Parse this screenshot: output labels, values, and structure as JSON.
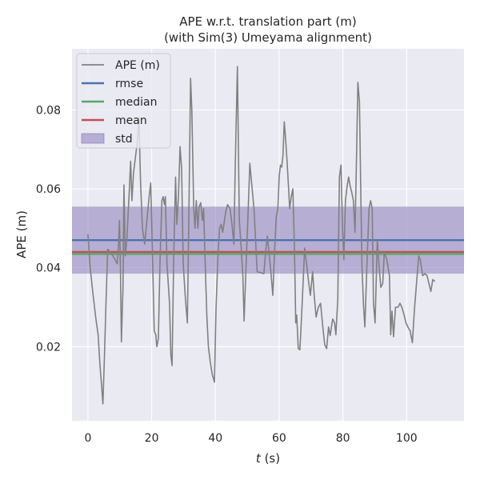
{
  "chart_data": {
    "type": "line",
    "title": "APE w.r.t. translation part (m)",
    "subtitle": "(with Sim(3) Umeyama alignment)",
    "xlabel_italic": "t",
    "xlabel_rest": " (s)",
    "ylabel": "APE (m)",
    "xlim": [
      -5,
      118
    ],
    "ylim": [
      0.0012,
      0.0955
    ],
    "xticks": [
      0,
      20,
      40,
      60,
      80,
      100
    ],
    "yticks": [
      0.02,
      0.04,
      0.06,
      0.08
    ],
    "ytick_labels": [
      "0.02",
      "0.04",
      "0.06",
      "0.08"
    ],
    "grid": true,
    "legend_position": "top-left",
    "stats": {
      "rmse": 0.047,
      "median": 0.0435,
      "mean": 0.044,
      "std": 0.0085
    },
    "legend": [
      {
        "key": "ape",
        "label": "APE (m)",
        "kind": "line",
        "color": "#808080"
      },
      {
        "key": "rmse",
        "label": "rmse",
        "kind": "line",
        "color": "#4c72b0"
      },
      {
        "key": "median",
        "label": "median",
        "kind": "line",
        "color": "#55a868"
      },
      {
        "key": "mean",
        "label": "mean",
        "kind": "line",
        "color": "#c44e52"
      },
      {
        "key": "std",
        "label": "std",
        "kind": "patch",
        "color": "#8172b3"
      }
    ],
    "series": [
      {
        "name": "APE (m)",
        "color": "#808080",
        "points": [
          [
            0,
            0.0485
          ],
          [
            0.7,
            0.04
          ],
          [
            1.5,
            0.034
          ],
          [
            2.5,
            0.027
          ],
          [
            3.2,
            0.023
          ],
          [
            3.8,
            0.015
          ],
          [
            4.3,
            0.01
          ],
          [
            4.7,
            0.0055
          ],
          [
            5.2,
            0.018
          ],
          [
            5.7,
            0.032
          ],
          [
            6.2,
            0.0447
          ],
          [
            7,
            0.044
          ],
          [
            8,
            0.0428
          ],
          [
            9.2,
            0.041
          ],
          [
            9.6,
            0.046
          ],
          [
            9.9,
            0.052
          ],
          [
            10.2,
            0.04
          ],
          [
            10.5,
            0.0212
          ],
          [
            11,
            0.035
          ],
          [
            11.3,
            0.061
          ],
          [
            11.7,
            0.043
          ],
          [
            12.2,
            0.047
          ],
          [
            13,
            0.06
          ],
          [
            13.4,
            0.067
          ],
          [
            13.8,
            0.057
          ],
          [
            14.3,
            0.064
          ],
          [
            15.5,
            0.072
          ],
          [
            16,
            0.078
          ],
          [
            16.5,
            0.062
          ],
          [
            17.1,
            0.05
          ],
          [
            17.8,
            0.046
          ],
          [
            18.5,
            0.052
          ],
          [
            19.2,
            0.058
          ],
          [
            19.7,
            0.0615
          ],
          [
            20.2,
            0.045
          ],
          [
            20.8,
            0.024
          ],
          [
            21.3,
            0.023
          ],
          [
            21.6,
            0.02
          ],
          [
            22.1,
            0.022
          ],
          [
            22.6,
            0.041
          ],
          [
            23.2,
            0.057
          ],
          [
            23.6,
            0.058
          ],
          [
            24,
            0.056
          ],
          [
            24.3,
            0.058
          ],
          [
            24.8,
            0.041
          ],
          [
            25.6,
            0.031
          ],
          [
            26,
            0.018
          ],
          [
            26.4,
            0.0152
          ],
          [
            26.9,
            0.042
          ],
          [
            27.5,
            0.063
          ],
          [
            27.9,
            0.051
          ],
          [
            28.4,
            0.058
          ],
          [
            28.9,
            0.0707
          ],
          [
            29.4,
            0.065
          ],
          [
            29.9,
            0.041
          ],
          [
            30.6,
            0.032
          ],
          [
            31.2,
            0.026
          ],
          [
            31.7,
            0.055
          ],
          [
            32.2,
            0.088
          ],
          [
            32.6,
            0.08
          ],
          [
            33.2,
            0.055
          ],
          [
            33.6,
            0.05
          ],
          [
            34,
            0.057
          ],
          [
            34.5,
            0.05
          ],
          [
            34.9,
            0.0555
          ],
          [
            35.4,
            0.0565
          ],
          [
            35.9,
            0.052
          ],
          [
            36.3,
            0.055
          ],
          [
            36.8,
            0.041
          ],
          [
            37.3,
            0.028
          ],
          [
            37.8,
            0.02
          ],
          [
            38.4,
            0.016
          ],
          [
            39,
            0.013
          ],
          [
            39.7,
            0.011
          ],
          [
            40.2,
            0.03
          ],
          [
            40.8,
            0.043
          ],
          [
            41.3,
            0.05
          ],
          [
            41.8,
            0.051
          ],
          [
            42.3,
            0.049
          ],
          [
            43.2,
            0.054
          ],
          [
            43.8,
            0.056
          ],
          [
            44.6,
            0.055
          ],
          [
            45.2,
            0.051
          ],
          [
            45.8,
            0.046
          ],
          [
            46.2,
            0.065
          ],
          [
            46.6,
            0.08
          ],
          [
            46.9,
            0.091
          ],
          [
            47.5,
            0.052
          ],
          [
            48.1,
            0.045
          ],
          [
            48.6,
            0.038
          ],
          [
            49,
            0.0265
          ],
          [
            49.5,
            0.038
          ],
          [
            50.3,
            0.055
          ],
          [
            50.8,
            0.0665
          ],
          [
            51.3,
            0.062
          ],
          [
            52.1,
            0.055
          ],
          [
            52.6,
            0.047
          ],
          [
            53.1,
            0.039
          ],
          [
            54.1,
            0.0388
          ],
          [
            55.2,
            0.0385
          ],
          [
            55.8,
            0.0443
          ],
          [
            56.3,
            0.048
          ],
          [
            56.8,
            0.044
          ],
          [
            57.4,
            0.039
          ],
          [
            58,
            0.033
          ],
          [
            58.6,
            0.045
          ],
          [
            59.1,
            0.053
          ],
          [
            59.6,
            0.055
          ],
          [
            60,
            0.063
          ],
          [
            60.4,
            0.066
          ],
          [
            60.8,
            0.0655
          ],
          [
            61.2,
            0.0685
          ],
          [
            61.6,
            0.077
          ],
          [
            62,
            0.073
          ],
          [
            62.4,
            0.068
          ],
          [
            62.9,
            0.061
          ],
          [
            63.3,
            0.055
          ],
          [
            63.8,
            0.058
          ],
          [
            64.3,
            0.06
          ],
          [
            64.8,
            0.045
          ],
          [
            65.2,
            0.026
          ],
          [
            65.5,
            0.028
          ],
          [
            66,
            0.0195
          ],
          [
            66.5,
            0.0192
          ],
          [
            67,
            0.027
          ],
          [
            67.5,
            0.036
          ],
          [
            68,
            0.045
          ],
          [
            68.6,
            0.041
          ],
          [
            69.3,
            0.036
          ],
          [
            69.8,
            0.033
          ],
          [
            70.5,
            0.039
          ],
          [
            71,
            0.033
          ],
          [
            71.6,
            0.0275
          ],
          [
            72.3,
            0.03
          ],
          [
            73,
            0.031
          ],
          [
            73.7,
            0.025
          ],
          [
            74.3,
            0.0205
          ],
          [
            74.9,
            0.0195
          ],
          [
            75.5,
            0.025
          ],
          [
            76,
            0.0228
          ],
          [
            76.8,
            0.027
          ],
          [
            77.4,
            0.026
          ],
          [
            77.8,
            0.023
          ],
          [
            78.4,
            0.032
          ],
          [
            78.9,
            0.063
          ],
          [
            79.4,
            0.066
          ],
          [
            79.9,
            0.05
          ],
          [
            80.3,
            0.042
          ],
          [
            80.8,
            0.057
          ],
          [
            81.3,
            0.0605
          ],
          [
            81.8,
            0.063
          ],
          [
            82.2,
            0.061
          ],
          [
            82.8,
            0.059
          ],
          [
            83.3,
            0.057
          ],
          [
            83.8,
            0.049
          ],
          [
            84.3,
            0.069
          ],
          [
            84.7,
            0.087
          ],
          [
            85.2,
            0.082
          ],
          [
            85.6,
            0.06
          ],
          [
            86,
            0.04
          ],
          [
            86.5,
            0.03
          ],
          [
            86.9,
            0.025
          ],
          [
            87.5,
            0.04
          ],
          [
            88.2,
            0.055
          ],
          [
            88.7,
            0.057
          ],
          [
            89.2,
            0.055
          ],
          [
            89.6,
            0.031
          ],
          [
            90.1,
            0.026
          ],
          [
            90.8,
            0.047
          ],
          [
            91.4,
            0.04
          ],
          [
            91.9,
            0.035
          ],
          [
            92.5,
            0.036
          ],
          [
            93,
            0.044
          ],
          [
            93.8,
            0.042
          ],
          [
            94.6,
            0.038
          ],
          [
            95,
            0.023
          ],
          [
            95.4,
            0.029
          ],
          [
            95.9,
            0.0225
          ],
          [
            96.5,
            0.03
          ],
          [
            97.3,
            0.03
          ],
          [
            97.9,
            0.031
          ],
          [
            98.5,
            0.03
          ],
          [
            99.2,
            0.028
          ],
          [
            99.8,
            0.026
          ],
          [
            100.5,
            0.0248
          ],
          [
            101.1,
            0.024
          ],
          [
            101.8,
            0.021
          ],
          [
            102.5,
            0.03
          ],
          [
            103.2,
            0.037
          ],
          [
            103.8,
            0.043
          ],
          [
            104.3,
            0.042
          ],
          [
            105,
            0.038
          ],
          [
            105.8,
            0.0385
          ],
          [
            106.4,
            0.038
          ],
          [
            107,
            0.036
          ],
          [
            107.6,
            0.034
          ],
          [
            108.2,
            0.037
          ],
          [
            108.9,
            0.0365
          ]
        ]
      }
    ]
  }
}
